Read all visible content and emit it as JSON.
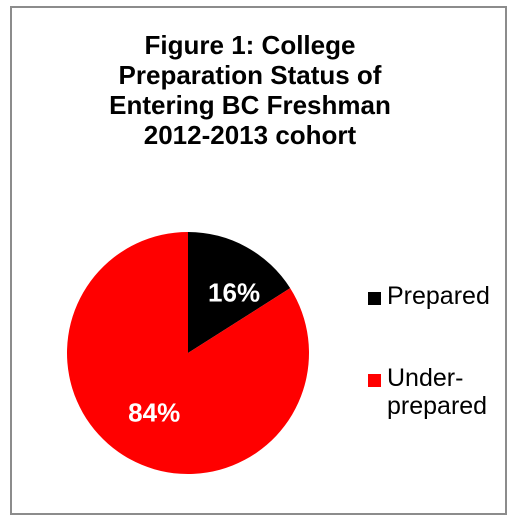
{
  "chart_data": {
    "type": "pie",
    "title_lines": [
      "Figure 1: College",
      "Preparation Status of",
      "Entering BC Freshman",
      "2012-2013 cohort"
    ],
    "slices": [
      {
        "label": "Prepared",
        "legend_lines": [
          "Prepared"
        ],
        "value": 16,
        "display": "16%",
        "color": "#000000",
        "label_color": "#ffffff"
      },
      {
        "label": "Under-prepared",
        "legend_lines": [
          "Under-",
          "prepared"
        ],
        "value": 84,
        "display": "84%",
        "color": "#ff0000",
        "label_color": "#ffffff"
      }
    ],
    "legend_position": "right"
  }
}
